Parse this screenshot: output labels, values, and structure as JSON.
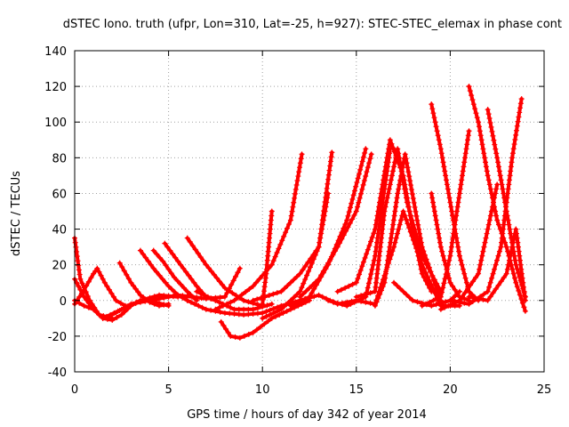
{
  "chart_data": {
    "type": "scatter",
    "title": "dSTEC Iono. truth (ufpr, Lon=310, Lat=-25, h=927): STEC-STEC_elemax in phase cont",
    "xlabel": "GPS time / hours of day 342 of year 2014",
    "ylabel": "dSTEC  / TECUs",
    "xlim": [
      0,
      25
    ],
    "ylim": [
      -40,
      140
    ],
    "xticks": [
      0,
      5,
      10,
      15,
      20,
      25
    ],
    "yticks": [
      -40,
      -20,
      0,
      20,
      40,
      60,
      80,
      100,
      120,
      140
    ],
    "grid": true,
    "marker": "plus",
    "color": "#ff0000",
    "series": [
      {
        "points": [
          [
            0,
            35
          ],
          [
            0.3,
            12
          ],
          [
            0.8,
            0
          ],
          [
            1.3,
            -8
          ],
          [
            2.0,
            -10
          ]
        ]
      },
      {
        "points": [
          [
            0,
            12
          ],
          [
            0.5,
            2
          ],
          [
            1.0,
            -5
          ],
          [
            1.5,
            -10
          ],
          [
            2.0,
            -11
          ],
          [
            2.5,
            -8
          ],
          [
            3.0,
            -3
          ],
          [
            3.5,
            0
          ]
        ]
      },
      {
        "points": [
          [
            0,
            -2
          ],
          [
            0.5,
            6
          ],
          [
            1.0,
            15
          ],
          [
            1.2,
            18
          ],
          [
            1.6,
            10
          ],
          [
            2.2,
            0
          ],
          [
            2.7,
            -3
          ]
        ]
      },
      {
        "points": [
          [
            2.4,
            21
          ],
          [
            3.0,
            10
          ],
          [
            3.5,
            3
          ],
          [
            4.0,
            -1
          ],
          [
            4.5,
            -3
          ],
          [
            5.0,
            -2
          ]
        ]
      },
      {
        "points": [
          [
            3.5,
            28
          ],
          [
            4.2,
            18
          ],
          [
            5.0,
            8
          ],
          [
            5.5,
            3
          ],
          [
            6.0,
            0
          ]
        ]
      },
      {
        "points": [
          [
            1.5,
            -10
          ],
          [
            2.5,
            -5
          ],
          [
            3.5,
            0
          ],
          [
            4.5,
            3
          ],
          [
            5.5,
            2
          ]
        ]
      },
      {
        "points": [
          [
            4.2,
            28
          ],
          [
            4.7,
            22
          ],
          [
            5.3,
            13
          ],
          [
            6.0,
            5
          ],
          [
            6.5,
            0
          ]
        ]
      },
      {
        "points": [
          [
            4.8,
            32
          ],
          [
            5.5,
            22
          ],
          [
            6.5,
            8
          ],
          [
            7.0,
            2
          ],
          [
            7.5,
            0
          ]
        ]
      },
      {
        "points": [
          [
            6.0,
            35
          ],
          [
            7.0,
            20
          ],
          [
            8.0,
            7
          ],
          [
            9.0,
            0
          ],
          [
            10.0,
            -3
          ]
        ]
      },
      {
        "points": [
          [
            7.8,
            -12
          ],
          [
            8.3,
            -20
          ],
          [
            8.8,
            -21
          ],
          [
            9.5,
            -18
          ],
          [
            10.5,
            -10
          ],
          [
            11.5,
            -5
          ],
          [
            12.5,
            0
          ]
        ]
      },
      {
        "points": [
          [
            6.0,
            0
          ],
          [
            7.0,
            -5
          ],
          [
            8.0,
            -7
          ],
          [
            9.0,
            -8
          ],
          [
            10.0,
            -7
          ],
          [
            11.0,
            -3
          ],
          [
            12.0,
            0
          ]
        ]
      },
      {
        "points": [
          [
            4.0,
            0
          ],
          [
            5.5,
            3
          ],
          [
            7.0,
            1
          ],
          [
            8.0,
            2
          ],
          [
            8.8,
            18
          ]
        ]
      },
      {
        "points": [
          [
            7.5,
            -5
          ],
          [
            8.5,
            0
          ],
          [
            9.5,
            8
          ],
          [
            10.5,
            20
          ],
          [
            11.5,
            45
          ],
          [
            12.1,
            82
          ]
        ]
      },
      {
        "points": [
          [
            10.0,
            -10
          ],
          [
            11.0,
            -5
          ],
          [
            12.0,
            5
          ],
          [
            13.0,
            30
          ],
          [
            13.7,
            83
          ]
        ]
      },
      {
        "points": [
          [
            9.5,
            0
          ],
          [
            11.0,
            5
          ],
          [
            12.0,
            15
          ],
          [
            13.0,
            30
          ],
          [
            13.5,
            60
          ]
        ]
      },
      {
        "points": [
          [
            10.5,
            50
          ],
          [
            10.2,
            15
          ],
          [
            10.0,
            -2
          ]
        ]
      },
      {
        "points": [
          [
            11.5,
            -3
          ],
          [
            12.5,
            2
          ],
          [
            13.5,
            20
          ],
          [
            14.5,
            45
          ],
          [
            15.5,
            85
          ]
        ]
      },
      {
        "points": [
          [
            12.0,
            2
          ],
          [
            13.0,
            12
          ],
          [
            14.0,
            30
          ],
          [
            15.0,
            50
          ],
          [
            15.8,
            82
          ]
        ]
      },
      {
        "points": [
          [
            13.5,
            0
          ],
          [
            14.5,
            -3
          ],
          [
            15.5,
            2
          ],
          [
            16.0,
            25
          ],
          [
            16.8,
            85
          ]
        ]
      },
      {
        "points": [
          [
            14.0,
            5
          ],
          [
            15.0,
            10
          ],
          [
            16.0,
            40
          ],
          [
            16.8,
            90
          ],
          [
            17.5,
            70
          ],
          [
            18.0,
            40
          ],
          [
            18.5,
            15
          ],
          [
            19.0,
            5
          ]
        ]
      },
      {
        "points": [
          [
            15.0,
            2
          ],
          [
            16.0,
            5
          ],
          [
            16.5,
            50
          ],
          [
            17.2,
            85
          ],
          [
            17.7,
            55
          ],
          [
            18.5,
            25
          ],
          [
            19.5,
            5
          ]
        ]
      },
      {
        "points": [
          [
            16.0,
            -3
          ],
          [
            16.5,
            10
          ],
          [
            17.2,
            60
          ],
          [
            17.6,
            82
          ],
          [
            18.5,
            30
          ],
          [
            19.5,
            0
          ]
        ]
      },
      {
        "points": [
          [
            16.0,
            -2
          ],
          [
            17.0,
            30
          ],
          [
            17.5,
            50
          ],
          [
            18.5,
            20
          ],
          [
            19.5,
            -3
          ],
          [
            20.5,
            -3
          ]
        ]
      },
      {
        "points": [
          [
            19.0,
            110
          ],
          [
            19.5,
            85
          ],
          [
            20.0,
            55
          ],
          [
            20.5,
            25
          ],
          [
            21.0,
            5
          ],
          [
            21.5,
            0
          ]
        ]
      },
      {
        "points": [
          [
            19.0,
            60
          ],
          [
            19.5,
            30
          ],
          [
            20.0,
            10
          ],
          [
            20.5,
            2
          ],
          [
            21.0,
            0
          ]
        ]
      },
      {
        "points": [
          [
            18.5,
            -3
          ],
          [
            19.5,
            2
          ],
          [
            20.0,
            25
          ],
          [
            20.5,
            60
          ],
          [
            21.0,
            95
          ]
        ]
      },
      {
        "points": [
          [
            21.0,
            120
          ],
          [
            21.5,
            100
          ],
          [
            22.0,
            70
          ],
          [
            22.5,
            45
          ],
          [
            23.0,
            30
          ],
          [
            23.5,
            10
          ],
          [
            24.0,
            -6
          ]
        ]
      },
      {
        "points": [
          [
            19.5,
            -5
          ],
          [
            20.5,
            0
          ],
          [
            21.5,
            15
          ],
          [
            22.0,
            40
          ],
          [
            22.5,
            65
          ]
        ]
      },
      {
        "points": [
          [
            22.0,
            107
          ],
          [
            22.5,
            80
          ],
          [
            23.0,
            50
          ],
          [
            23.5,
            20
          ],
          [
            24.0,
            2
          ]
        ]
      },
      {
        "points": [
          [
            20.0,
            0
          ],
          [
            21.0,
            -2
          ],
          [
            22.0,
            5
          ],
          [
            22.7,
            30
          ],
          [
            23.3,
            80
          ],
          [
            23.8,
            113
          ]
        ]
      },
      {
        "points": [
          [
            21.0,
            2
          ],
          [
            22.0,
            0
          ],
          [
            23.0,
            15
          ],
          [
            23.5,
            40
          ],
          [
            24.0,
            0
          ]
        ]
      },
      {
        "points": [
          [
            17.0,
            10
          ],
          [
            18.0,
            0
          ],
          [
            19.0,
            -3
          ],
          [
            20.0,
            0
          ],
          [
            20.5,
            5
          ]
        ]
      },
      {
        "points": [
          [
            12.0,
            0
          ],
          [
            13.0,
            3
          ],
          [
            14.0,
            -2
          ],
          [
            15.0,
            0
          ],
          [
            16.0,
            -2
          ]
        ]
      },
      {
        "points": [
          [
            0,
            0
          ],
          [
            0.5,
            -3
          ],
          [
            1.0,
            -5
          ]
        ]
      },
      {
        "points": [
          [
            2.0,
            -8
          ],
          [
            3.0,
            -2
          ],
          [
            4.0,
            0
          ],
          [
            5.0,
            -3
          ]
        ]
      },
      {
        "points": [
          [
            6.5,
            5
          ],
          [
            7.5,
            0
          ],
          [
            8.5,
            -5
          ],
          [
            9.5,
            -5
          ],
          [
            10.5,
            -2
          ]
        ]
      }
    ]
  }
}
